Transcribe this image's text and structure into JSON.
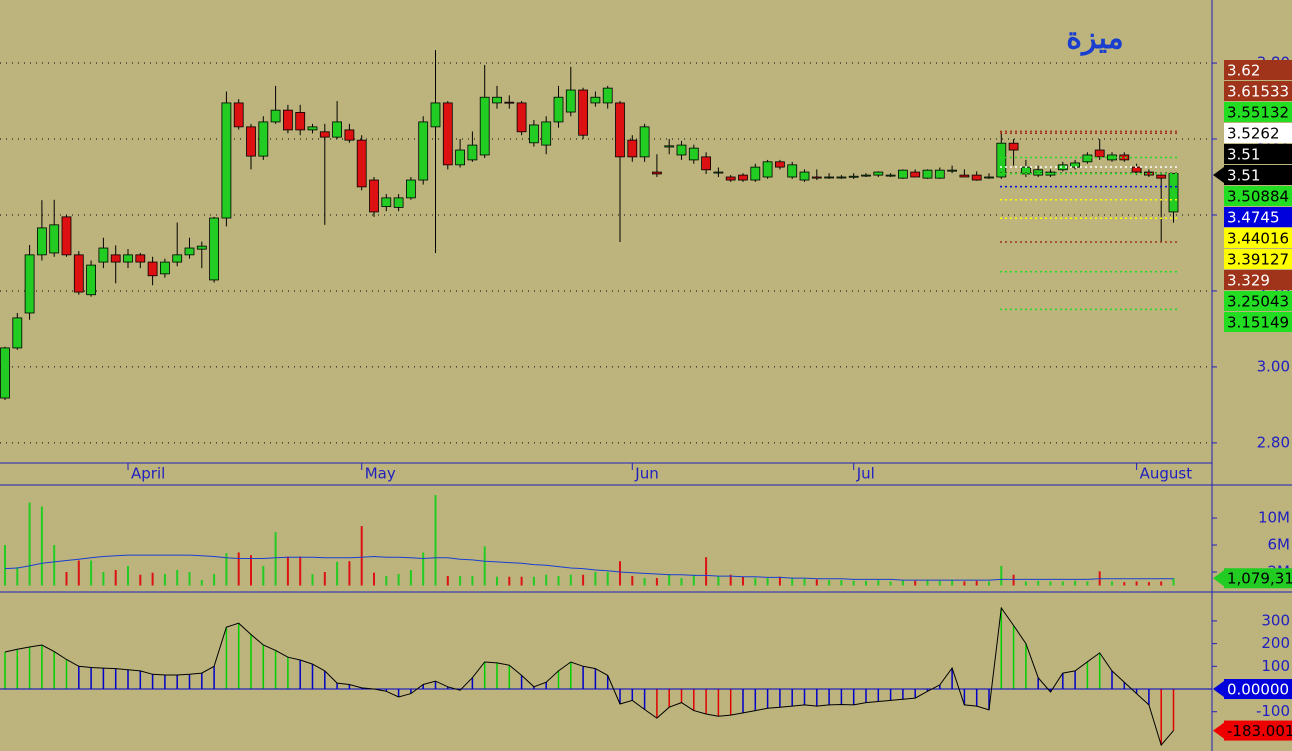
{
  "chart_data": [
    {
      "type": "candlestick",
      "title": "ميزة",
      "categories": [
        null,
        null,
        null,
        null,
        null,
        null,
        null,
        null,
        null,
        null,
        "April",
        null,
        null,
        null,
        null,
        null,
        null,
        null,
        null,
        null,
        null,
        null,
        null,
        null,
        null,
        null,
        null,
        null,
        null,
        "May",
        null,
        null,
        null,
        null,
        null,
        null,
        null,
        null,
        null,
        null,
        null,
        null,
        null,
        null,
        null,
        null,
        null,
        null,
        null,
        null,
        null,
        "Jun",
        null,
        null,
        null,
        null,
        null,
        null,
        null,
        null,
        null,
        null,
        null,
        null,
        null,
        null,
        null,
        null,
        null,
        "Jul",
        null,
        null,
        null,
        null,
        null,
        null,
        null,
        null,
        null,
        null,
        null,
        null,
        null,
        null,
        null,
        null,
        null,
        null,
        null,
        null,
        null,
        null,
        "August",
        null,
        null,
        null
      ],
      "open": [
        2.918,
        3.05,
        3.142,
        3.295,
        3.3,
        3.395,
        3.295,
        3.19,
        3.276,
        3.295,
        3.276,
        3.295,
        3.276,
        3.245,
        3.276,
        3.295,
        3.31,
        3.229,
        3.392,
        3.695,
        3.632,
        3.555,
        3.645,
        3.676,
        3.67,
        3.624,
        3.619,
        3.605,
        3.624,
        3.597,
        3.492,
        3.422,
        3.42,
        3.445,
        3.492,
        3.632,
        3.695,
        3.532,
        3.545,
        3.558,
        3.695,
        3.697,
        3.695,
        3.59,
        3.584,
        3.645,
        3.671,
        3.729,
        3.695,
        3.695,
        3.695,
        3.597,
        3.553,
        3.513,
        3.579,
        3.558,
        3.545,
        3.553,
        3.513,
        3.5,
        3.505,
        3.492,
        3.5,
        3.54,
        3.5,
        3.492,
        3.5,
        3.5,
        3.5,
        3.5,
        3.505,
        3.505,
        3.505,
        3.497,
        3.513,
        3.497,
        3.497,
        3.518,
        3.505,
        3.505,
        3.5,
        3.5,
        3.589,
        3.508,
        3.505,
        3.505,
        3.519,
        3.526,
        3.54,
        3.571,
        3.545,
        3.558,
        3.526,
        3.513,
        3.505,
        3.408
      ],
      "high": [
        3.053,
        3.142,
        3.321,
        3.439,
        3.44,
        3.4,
        3.305,
        3.28,
        3.34,
        3.32,
        3.31,
        3.3,
        3.29,
        3.285,
        3.38,
        3.34,
        3.33,
        3.395,
        3.725,
        3.705,
        3.64,
        3.66,
        3.74,
        3.69,
        3.69,
        3.64,
        3.64,
        3.7,
        3.64,
        3.61,
        3.5,
        3.455,
        3.455,
        3.5,
        3.66,
        3.834,
        3.7,
        3.6,
        3.62,
        3.795,
        3.74,
        3.715,
        3.7,
        3.65,
        3.66,
        3.74,
        3.79,
        3.735,
        3.725,
        3.74,
        3.7,
        3.61,
        3.64,
        3.56,
        3.6,
        3.595,
        3.585,
        3.565,
        3.525,
        3.505,
        3.51,
        3.535,
        3.545,
        3.545,
        3.54,
        3.52,
        3.52,
        3.51,
        3.505,
        3.51,
        3.51,
        3.515,
        3.51,
        3.52,
        3.52,
        3.52,
        3.525,
        3.53,
        3.52,
        3.515,
        3.51,
        3.618,
        3.6,
        3.545,
        3.53,
        3.52,
        3.54,
        3.545,
        3.565,
        3.6,
        3.565,
        3.565,
        3.535,
        3.52,
        3.51,
        3.51
      ],
      "low": [
        2.913,
        3.045,
        3.124,
        3.28,
        3.29,
        3.29,
        3.19,
        3.185,
        3.26,
        3.22,
        3.26,
        3.26,
        3.215,
        3.235,
        3.265,
        3.285,
        3.26,
        3.222,
        3.37,
        3.625,
        3.52,
        3.545,
        3.64,
        3.615,
        3.61,
        3.615,
        3.374,
        3.6,
        3.59,
        3.465,
        3.395,
        3.41,
        3.41,
        3.44,
        3.48,
        3.3,
        3.52,
        3.525,
        3.54,
        3.55,
        3.68,
        3.68,
        3.61,
        3.58,
        3.56,
        3.63,
        3.66,
        3.6,
        3.685,
        3.68,
        3.329,
        3.54,
        3.54,
        3.5,
        3.56,
        3.545,
        3.535,
        3.508,
        3.5,
        3.487,
        3.487,
        3.487,
        3.495,
        3.52,
        3.495,
        3.487,
        3.492,
        3.495,
        3.495,
        3.495,
        3.5,
        3.5,
        3.5,
        3.495,
        3.5,
        3.495,
        3.495,
        3.51,
        3.5,
        3.49,
        3.495,
        3.495,
        3.53,
        3.5,
        3.5,
        3.5,
        3.515,
        3.52,
        3.535,
        3.545,
        3.54,
        3.54,
        3.505,
        3.5,
        3.329,
        3.38
      ],
      "close": [
        3.05,
        3.129,
        3.295,
        3.366,
        3.374,
        3.295,
        3.197,
        3.268,
        3.313,
        3.276,
        3.295,
        3.276,
        3.24,
        3.276,
        3.295,
        3.313,
        3.318,
        3.392,
        3.695,
        3.632,
        3.555,
        3.645,
        3.676,
        3.624,
        3.624,
        3.632,
        3.605,
        3.645,
        3.597,
        3.474,
        3.408,
        3.445,
        3.445,
        3.492,
        3.645,
        3.695,
        3.532,
        3.571,
        3.584,
        3.71,
        3.71,
        3.695,
        3.619,
        3.637,
        3.645,
        3.71,
        3.729,
        3.61,
        3.71,
        3.734,
        3.553,
        3.553,
        3.632,
        3.508,
        3.582,
        3.584,
        3.576,
        3.519,
        3.513,
        3.492,
        3.492,
        3.526,
        3.54,
        3.526,
        3.532,
        3.513,
        3.497,
        3.5,
        3.5,
        3.502,
        3.505,
        3.513,
        3.505,
        3.518,
        3.5,
        3.518,
        3.518,
        3.518,
        3.5,
        3.492,
        3.5,
        3.589,
        3.571,
        3.526,
        3.519,
        3.513,
        3.532,
        3.537,
        3.558,
        3.553,
        3.558,
        3.545,
        3.513,
        3.505,
        3.497,
        3.509
      ],
      "up_color": "#22cc22",
      "down_color": "#dd1111",
      "ylim": [
        2.747,
        3.966
      ],
      "yticks": [
        {
          "value": 2.8,
          "label": "2.80"
        },
        {
          "value": 3.0,
          "label": "3.00"
        },
        {
          "value": 3.2,
          "label": "3.20"
        },
        {
          "value": 3.4,
          "label": "3.40"
        },
        {
          "value": 3.6,
          "label": "3.60"
        },
        {
          "value": 3.8,
          "label": "3.80"
        }
      ],
      "grid": true,
      "markers": [
        {
          "value": 3.62,
          "label": "3.62",
          "color": "#a0341a",
          "text_color": "#ffffff"
        },
        {
          "value": 3.61533,
          "label": "3.61533",
          "color": "#a0341a",
          "text_color": "#ffffff"
        },
        {
          "value": 3.55132,
          "label": "3.55132",
          "color": "#22dd22",
          "text_color": "#000000"
        },
        {
          "value": 3.5262,
          "label": "3.5262",
          "color": "#ffffff",
          "text_color": "#000000"
        },
        {
          "value": 3.51,
          "label": "3.51",
          "color": "#000000",
          "text_color": "#ffffff"
        },
        {
          "value": 3.51,
          "label": "3.51",
          "color": "#000000",
          "text_color": "#ffffff"
        },
        {
          "value": 3.50884,
          "label": "3.50884",
          "color": "#22dd22",
          "text_color": "#000000"
        },
        {
          "value": 3.4745,
          "label": "3.4745",
          "color": "#0000dd",
          "text_color": "#ffffff"
        },
        {
          "value": 3.44016,
          "label": "3.44016",
          "color": "#ffff00",
          "text_color": "#000000"
        },
        {
          "value": 3.39127,
          "label": "3.39127",
          "color": "#ffff00",
          "text_color": "#000000"
        },
        {
          "value": 3.329,
          "label": "3.329",
          "color": "#a0341a",
          "text_color": "#ffffff"
        },
        {
          "value": 3.25043,
          "label": "3.25043",
          "color": "#22dd22",
          "text_color": "#000000"
        },
        {
          "value": 3.15149,
          "label": "3.15149",
          "color": "#22dd22",
          "text_color": "#000000"
        }
      ]
    },
    {
      "type": "bar",
      "values": [
        6.0,
        2.7,
        12.3,
        11.7,
        6.0,
        2.0,
        3.7,
        3.7,
        2.0,
        2.3,
        2.9,
        1.6,
        1.9,
        1.7,
        2.3,
        2.0,
        0.8,
        1.7,
        4.8,
        4.9,
        4.5,
        2.9,
        7.9,
        4.3,
        4.3,
        1.7,
        2.0,
        3.5,
        3.6,
        8.8,
        1.9,
        1.4,
        1.7,
        2.3,
        4.9,
        13.4,
        1.4,
        1.4,
        1.4,
        5.8,
        1.3,
        1.3,
        1.3,
        1.3,
        1.6,
        1.4,
        1.6,
        1.6,
        2.0,
        2.0,
        3.6,
        1.4,
        1.1,
        1.1,
        1.7,
        1.1,
        1.6,
        4.2,
        1.4,
        1.6,
        1.3,
        1.1,
        1.1,
        1.3,
        1.1,
        1.0,
        0.9,
        0.8,
        0.8,
        0.7,
        0.7,
        0.8,
        0.6,
        0.8,
        0.7,
        0.8,
        0.7,
        0.8,
        0.6,
        0.7,
        0.6,
        2.9,
        1.6,
        0.6,
        0.7,
        0.6,
        0.6,
        0.7,
        0.6,
        2.1,
        0.6,
        0.5,
        0.6,
        0.5,
        0.6,
        1.07931
      ],
      "ma": [
        2.5,
        2.6,
        2.9,
        3.3,
        3.5,
        3.7,
        3.9,
        4.1,
        4.3,
        4.4,
        4.5,
        4.5,
        4.5,
        4.5,
        4.5,
        4.5,
        4.4,
        4.3,
        4.1,
        4.0,
        4.0,
        4.0,
        4.1,
        4.2,
        4.2,
        4.2,
        4.1,
        4.1,
        4.1,
        4.2,
        4.3,
        4.2,
        4.2,
        4.1,
        4.0,
        4.1,
        4.1,
        3.9,
        3.8,
        3.6,
        3.5,
        3.4,
        3.3,
        3.1,
        3.0,
        2.8,
        2.6,
        2.5,
        2.3,
        2.2,
        2.0,
        1.9,
        1.8,
        1.7,
        1.6,
        1.6,
        1.5,
        1.5,
        1.4,
        1.4,
        1.3,
        1.3,
        1.2,
        1.2,
        1.1,
        1.1,
        1.0,
        1.0,
        1.0,
        0.9,
        0.9,
        0.9,
        0.9,
        0.8,
        0.8,
        0.8,
        0.8,
        0.8,
        0.8,
        0.8,
        0.8,
        0.9,
        0.9,
        0.9,
        0.9,
        0.9,
        0.9,
        0.9,
        0.9,
        1.0,
        1.0,
        1.0,
        1.0,
        1.0,
        1.0,
        1.0
      ],
      "ma_color": "#1a3fd0",
      "ylim": [
        0,
        14.6
      ],
      "yticks": [
        {
          "value": 10,
          "label": "10M"
        },
        {
          "value": 6,
          "label": "6M"
        },
        {
          "value": 2,
          "label": "2M"
        }
      ],
      "markers": [
        {
          "value": 1.07931,
          "label": "1,079,31",
          "color": "#22cc22",
          "text_color": "#000000"
        }
      ]
    },
    {
      "type": "bar",
      "values": [
        163,
        175,
        185,
        194,
        165,
        130,
        100,
        95,
        92,
        90,
        85,
        80,
        65,
        62,
        62,
        65,
        70,
        100,
        273,
        290,
        240,
        194,
        170,
        140,
        128,
        110,
        80,
        26,
        20,
        5,
        0,
        -10,
        -35,
        -20,
        20,
        35,
        10,
        -5,
        50,
        119,
        115,
        105,
        60,
        10,
        30,
        80,
        119,
        100,
        90,
        60,
        -66,
        -50,
        -90,
        -128,
        -80,
        -60,
        -95,
        -110,
        -120,
        -115,
        -105,
        -95,
        -85,
        -80,
        -75,
        -70,
        -75,
        -70,
        -68,
        -70,
        -60,
        -55,
        -50,
        -45,
        -40,
        -10,
        18,
        92,
        -70,
        -75,
        -92,
        357,
        280,
        200,
        50,
        -13,
        70,
        80,
        120,
        159,
        80,
        30,
        -20,
        -70,
        -247,
        -183.001
      ],
      "colors": [
        "#00d000",
        "#00d000",
        "#00d000",
        "#00d000",
        "#00d000",
        "#00d000",
        "#0000c8",
        "#0000c8",
        "#0000c8",
        "#0000c8",
        "#0000c8",
        "#0000c8",
        "#0000c8",
        "#0000c8",
        "#0000c8",
        "#0000c8",
        "#0000c8",
        "#0000c8",
        "#00d000",
        "#00d000",
        "#00d000",
        "#00d000",
        "#00d000",
        "#00d000",
        "#0000c8",
        "#0000c8",
        "#0000c8",
        "#0000c8",
        "#0000c8",
        "#0000c8",
        "#0000c8",
        "#0000c8",
        "#0000c8",
        "#0000c8",
        "#0000c8",
        "#0000c8",
        "#0000c8",
        "#0000c8",
        "#0000c8",
        "#00d000",
        "#00d000",
        "#00d000",
        "#0000c8",
        "#0000c8",
        "#0000c8",
        "#00d000",
        "#00d000",
        "#0000c8",
        "#0000c8",
        "#0000c8",
        "#0000c8",
        "#0000c8",
        "#0000c8",
        "#e00000",
        "#e00000",
        "#e00000",
        "#e00000",
        "#e00000",
        "#e00000",
        "#e00000",
        "#0000c8",
        "#0000c8",
        "#0000c8",
        "#0000c8",
        "#0000c8",
        "#0000c8",
        "#0000c8",
        "#0000c8",
        "#0000c8",
        "#0000c8",
        "#0000c8",
        "#0000c8",
        "#0000c8",
        "#0000c8",
        "#0000c8",
        "#0000c8",
        "#0000c8",
        "#0000c8",
        "#0000c8",
        "#0000c8",
        "#0000c8",
        "#00d000",
        "#00d000",
        "#00d000",
        "#0000c8",
        "#0000c8",
        "#0000c8",
        "#0000c8",
        "#00d000",
        "#00d000",
        "#0000c8",
        "#0000c8",
        "#0000c8",
        "#0000c8",
        "#e00000",
        "#e00000"
      ],
      "line_color": "#000000",
      "ylim": [
        -273,
        423
      ],
      "yticks": [
        300,
        200,
        100,
        -100
      ],
      "markers": [
        {
          "value": 0,
          "label": "0.00000",
          "color": "#0000dd",
          "text_color": "#ffffff"
        },
        {
          "value": -183.001,
          "label": "-183.001",
          "color": "#ee0000",
          "text_color": "#000000"
        }
      ]
    }
  ]
}
